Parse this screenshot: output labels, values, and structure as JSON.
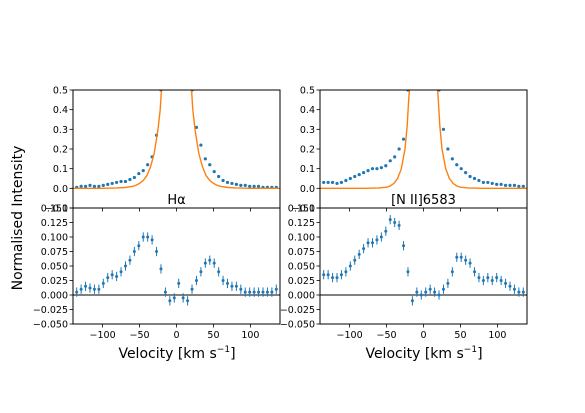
{
  "figure": {
    "ylabel": "Normalised Intensity",
    "xlabel": "Velocity [km s$^{-1}$]",
    "xlabel_parts": {
      "main": "Velocity [km s",
      "sup": "−1",
      "end": "]"
    },
    "colors": {
      "data": "#1f77b4",
      "model": "#ff7f0e",
      "axes": "#000000",
      "zero_line": "#000000"
    }
  },
  "chart_data": [
    {
      "type": "scatter",
      "panel": "top-left",
      "label": "Hα",
      "xlim": [
        -140,
        140
      ],
      "ylim": [
        -0.1,
        0.5
      ],
      "yticks": [
        "−0.1",
        "0.0",
        "0.1",
        "0.2",
        "0.3",
        "0.4",
        "0.5"
      ],
      "ytick_values": [
        -0.1,
        0.0,
        0.1,
        0.2,
        0.3,
        0.4,
        0.5
      ],
      "series": [
        {
          "kind": "points",
          "x": [
            -135,
            -129,
            -123,
            -117,
            -111,
            -105,
            -99,
            -93,
            -87,
            -81,
            -75,
            -69,
            -63,
            -57,
            -51,
            -45,
            -39,
            -33,
            -27,
            -21,
            21,
            27,
            33,
            39,
            45,
            51,
            57,
            63,
            69,
            75,
            81,
            87,
            93,
            99,
            105,
            111,
            117,
            123,
            129,
            135
          ],
          "y": [
            0.005,
            0.01,
            0.01,
            0.015,
            0.01,
            0.01,
            0.015,
            0.02,
            0.025,
            0.03,
            0.035,
            0.035,
            0.045,
            0.055,
            0.075,
            0.09,
            0.12,
            0.16,
            0.27,
            0.5,
            0.5,
            0.31,
            0.22,
            0.15,
            0.12,
            0.085,
            0.06,
            0.04,
            0.03,
            0.025,
            0.02,
            0.015,
            0.015,
            0.01,
            0.01,
            0.01,
            0.005,
            0.005,
            0.005,
            0.005
          ]
        },
        {
          "kind": "line",
          "x": [
            -140,
            -100,
            -80,
            -70,
            -60,
            -55,
            -50,
            -45,
            -40,
            -35,
            -30,
            -25,
            -22,
            -20,
            20,
            22,
            25,
            30,
            35,
            40,
            45,
            50,
            55,
            60,
            70,
            80,
            100,
            140
          ],
          "y": [
            0,
            0,
            0.002,
            0.004,
            0.01,
            0.015,
            0.025,
            0.04,
            0.065,
            0.11,
            0.18,
            0.3,
            0.4,
            0.52,
            0.52,
            0.4,
            0.3,
            0.18,
            0.11,
            0.065,
            0.04,
            0.025,
            0.015,
            0.01,
            0.004,
            0.002,
            0,
            0
          ]
        }
      ]
    },
    {
      "type": "scatter",
      "panel": "bottom-left",
      "xlim": [
        -140,
        140
      ],
      "ylim": [
        -0.05,
        0.15
      ],
      "yticks": [
        "−0.050",
        "−0.025",
        "0.000",
        "0.025",
        "0.050",
        "0.075",
        "0.100",
        "0.125",
        "0.150"
      ],
      "ytick_values": [
        -0.05,
        -0.025,
        0,
        0.025,
        0.05,
        0.075,
        0.1,
        0.125,
        0.15
      ],
      "xticks": [
        "−100",
        "−50",
        "0",
        "50",
        "100"
      ],
      "xtick_values": [
        -100,
        -50,
        0,
        50,
        100
      ],
      "series": [
        {
          "kind": "errorbars",
          "x": [
            -135,
            -129,
            -123,
            -117,
            -111,
            -105,
            -99,
            -93,
            -87,
            -81,
            -75,
            -69,
            -63,
            -57,
            -51,
            -45,
            -39,
            -33,
            -27,
            -21,
            -15,
            -9,
            -3,
            3,
            9,
            15,
            21,
            27,
            33,
            39,
            45,
            51,
            57,
            63,
            69,
            75,
            81,
            87,
            93,
            99,
            105,
            111,
            117,
            123,
            129,
            135
          ],
          "y": [
            0.005,
            0.01,
            0.015,
            0.012,
            0.01,
            0.01,
            0.02,
            0.03,
            0.035,
            0.032,
            0.04,
            0.05,
            0.06,
            0.075,
            0.085,
            0.1,
            0.1,
            0.095,
            0.075,
            0.045,
            0.005,
            -0.01,
            -0.005,
            0.02,
            -0.005,
            -0.01,
            0.01,
            0.025,
            0.04,
            0.055,
            0.06,
            0.055,
            0.04,
            0.025,
            0.02,
            0.015,
            0.015,
            0.01,
            0.005,
            0.005,
            0.005,
            0.005,
            0.005,
            0.005,
            0.005,
            0.01
          ],
          "err": 0.008
        }
      ]
    },
    {
      "type": "scatter",
      "panel": "top-right",
      "label": "[N II]6583",
      "xlim": [
        -140,
        140
      ],
      "ylim": [
        -0.1,
        0.5
      ],
      "yticks": [
        "−0.1",
        "0.0",
        "0.1",
        "0.2",
        "0.3",
        "0.4",
        "0.5"
      ],
      "ytick_values": [
        -0.1,
        0.0,
        0.1,
        0.2,
        0.3,
        0.4,
        0.5
      ],
      "series": [
        {
          "kind": "points",
          "x": [
            -135,
            -129,
            -123,
            -117,
            -111,
            -105,
            -99,
            -93,
            -87,
            -81,
            -75,
            -69,
            -63,
            -57,
            -51,
            -45,
            -39,
            -33,
            -27,
            -21,
            21,
            27,
            33,
            39,
            45,
            51,
            57,
            63,
            69,
            75,
            81,
            87,
            93,
            99,
            105,
            111,
            117,
            123,
            129,
            135
          ],
          "y": [
            0.03,
            0.03,
            0.03,
            0.025,
            0.03,
            0.04,
            0.05,
            0.06,
            0.07,
            0.08,
            0.09,
            0.1,
            0.1,
            0.105,
            0.115,
            0.14,
            0.16,
            0.2,
            0.25,
            0.5,
            0.5,
            0.3,
            0.2,
            0.15,
            0.12,
            0.1,
            0.08,
            0.06,
            0.05,
            0.04,
            0.03,
            0.03,
            0.025,
            0.02,
            0.02,
            0.015,
            0.015,
            0.015,
            0.01,
            0.01
          ]
        },
        {
          "kind": "line",
          "x": [
            -140,
            -100,
            -80,
            -60,
            -50,
            -45,
            -40,
            -35,
            -30,
            -25,
            -22,
            -20,
            -18,
            18,
            20,
            22,
            25,
            30,
            35,
            40,
            45,
            50,
            60,
            80,
            100,
            140
          ],
          "y": [
            0,
            0,
            0,
            0.002,
            0.006,
            0.012,
            0.025,
            0.05,
            0.1,
            0.2,
            0.32,
            0.45,
            0.55,
            0.55,
            0.45,
            0.32,
            0.2,
            0.1,
            0.05,
            0.025,
            0.012,
            0.006,
            0.002,
            0,
            0,
            0
          ]
        }
      ]
    },
    {
      "type": "scatter",
      "panel": "bottom-right",
      "xlim": [
        -140,
        140
      ],
      "ylim": [
        -0.05,
        0.15
      ],
      "yticks": [
        "−0.050",
        "−0.025",
        "0.000",
        "0.025",
        "0.050",
        "0.075",
        "0.100",
        "0.125",
        "0.150"
      ],
      "ytick_values": [
        -0.05,
        -0.025,
        0,
        0.025,
        0.05,
        0.075,
        0.1,
        0.125,
        0.15
      ],
      "xticks": [
        "−100",
        "−50",
        "0",
        "50",
        "100"
      ],
      "xtick_values": [
        -100,
        -50,
        0,
        50,
        100
      ],
      "series": [
        {
          "kind": "errorbars",
          "x": [
            -135,
            -129,
            -123,
            -117,
            -111,
            -105,
            -99,
            -93,
            -87,
            -81,
            -75,
            -69,
            -63,
            -57,
            -51,
            -45,
            -39,
            -33,
            -27,
            -21,
            -15,
            -9,
            -3,
            3,
            9,
            15,
            21,
            27,
            33,
            39,
            45,
            51,
            57,
            63,
            69,
            75,
            81,
            87,
            93,
            99,
            105,
            111,
            117,
            123,
            129,
            135
          ],
          "y": [
            0.035,
            0.035,
            0.03,
            0.03,
            0.035,
            0.04,
            0.05,
            0.06,
            0.07,
            0.08,
            0.09,
            0.09,
            0.095,
            0.1,
            0.11,
            0.13,
            0.125,
            0.12,
            0.085,
            0.04,
            -0.01,
            0.005,
            0.0,
            0.005,
            0.01,
            0.005,
            0.0,
            0.01,
            0.02,
            0.04,
            0.065,
            0.065,
            0.06,
            0.055,
            0.04,
            0.03,
            0.025,
            0.03,
            0.025,
            0.03,
            0.025,
            0.02,
            0.015,
            0.01,
            0.005,
            0.005
          ],
          "err": 0.008
        }
      ]
    }
  ]
}
